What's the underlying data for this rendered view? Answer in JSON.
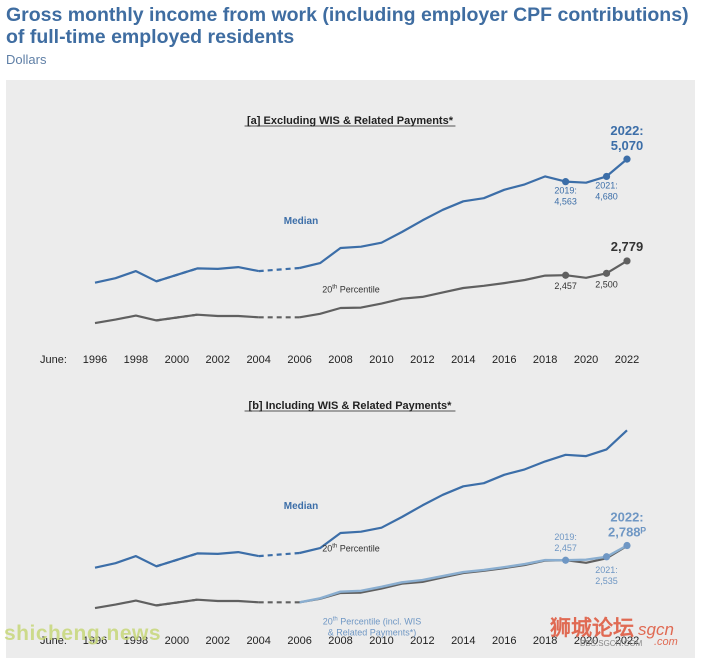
{
  "title": "Gross monthly income from work (including employer CPF contributions) of full-time employed residents",
  "units": "Dollars",
  "watermark": "shicheng.news",
  "forum_logo": {
    "brand": "狮城论坛",
    "domain": "sgcn",
    "com": ".com",
    "url": "BBS.SGCN.COM"
  },
  "colors": {
    "median": "#3c6ea8",
    "p20": "#606060",
    "p20_incl": "#8aaed0",
    "title": "#3f6da1",
    "panel": "#ececec"
  },
  "chart_data": [
    {
      "type": "line",
      "title": "[a] Excluding WIS & Related Payments*",
      "x_prefix": "June:",
      "x_ticks": [
        1996,
        1998,
        2000,
        2002,
        2004,
        2006,
        2008,
        2010,
        2012,
        2014,
        2016,
        2018,
        2020,
        2022
      ],
      "x_range": [
        1996,
        2022
      ],
      "y_range": [
        1000,
        5500
      ],
      "grid": false,
      "dashed_between": [
        2004,
        2006
      ],
      "series": [
        {
          "name": "Median",
          "color": "#3c6ea8",
          "x": [
            1996,
            1997,
            1998,
            1999,
            2001,
            2002,
            2003,
            2004,
            2006,
            2007,
            2008,
            2009,
            2010,
            2011,
            2012,
            2013,
            2014,
            2015,
            2016,
            2017,
            2018,
            2019,
            2020,
            2021,
            2022
          ],
          "y": [
            2290,
            2390,
            2550,
            2320,
            2610,
            2600,
            2640,
            2550,
            2620,
            2730,
            3070,
            3100,
            3190,
            3430,
            3690,
            3930,
            4120,
            4190,
            4380,
            4500,
            4680,
            4563,
            4540,
            4680,
            5070
          ]
        },
        {
          "name": "20th Percentile",
          "color": "#606060",
          "x": [
            1996,
            1997,
            1998,
            1999,
            2001,
            2002,
            2003,
            2004,
            2006,
            2007,
            2008,
            2009,
            2010,
            2011,
            2012,
            2013,
            2014,
            2015,
            2016,
            2017,
            2018,
            2019,
            2020,
            2021,
            2022
          ],
          "y": [
            1380,
            1460,
            1550,
            1440,
            1570,
            1540,
            1540,
            1510,
            1510,
            1590,
            1720,
            1730,
            1820,
            1930,
            1970,
            2070,
            2170,
            2220,
            2280,
            2350,
            2450,
            2457,
            2400,
            2500,
            2779
          ]
        }
      ],
      "point_labels": [
        {
          "x": 2019,
          "series": "Median",
          "lines": [
            "2019:",
            "4,563"
          ]
        },
        {
          "x": 2021,
          "series": "Median",
          "lines": [
            "2021:",
            "4,680"
          ]
        },
        {
          "x": 2022,
          "series": "Median",
          "lines": [
            "2022:",
            "5,070"
          ]
        },
        {
          "x": 2019,
          "series": "20th Percentile",
          "lines": [
            "2,457"
          ]
        },
        {
          "x": 2021,
          "series": "20th Percentile",
          "lines": [
            "2,500"
          ]
        },
        {
          "x": 2022,
          "series": "20th Percentile",
          "lines": [
            "2,779"
          ]
        }
      ]
    },
    {
      "type": "line",
      "title": "[b] Including WIS & Related Payments*",
      "x_prefix": "June:",
      "x_ticks": [
        1996,
        1998,
        2000,
        2002,
        2004,
        2006,
        2008,
        2010,
        2012,
        2014,
        2016,
        2018,
        2020,
        2022
      ],
      "x_range": [
        1996,
        2022
      ],
      "y_range": [
        1000,
        5500
      ],
      "grid": false,
      "dashed_between": [
        2004,
        2006
      ],
      "series": [
        {
          "name": "Median",
          "color": "#3c6ea8",
          "x": [
            1996,
            1997,
            1998,
            1999,
            2001,
            2002,
            2003,
            2004,
            2006,
            2007,
            2008,
            2009,
            2010,
            2011,
            2012,
            2013,
            2014,
            2015,
            2016,
            2017,
            2018,
            2019,
            2020,
            2021,
            2022
          ],
          "y": [
            2290,
            2390,
            2550,
            2320,
            2610,
            2600,
            2640,
            2550,
            2620,
            2730,
            3070,
            3100,
            3190,
            3430,
            3690,
            3930,
            4120,
            4190,
            4380,
            4500,
            4680,
            4830,
            4800,
            4950,
            5380
          ]
        },
        {
          "name": "20th Percentile",
          "color": "#606060",
          "x": [
            1996,
            1997,
            1998,
            1999,
            2001,
            2002,
            2003,
            2004,
            2006,
            2007,
            2008,
            2009,
            2010,
            2011,
            2012,
            2013,
            2014,
            2015,
            2016,
            2017,
            2018,
            2019,
            2020,
            2021,
            2022
          ],
          "y": [
            1380,
            1460,
            1550,
            1440,
            1570,
            1540,
            1540,
            1510,
            1510,
            1590,
            1720,
            1730,
            1820,
            1930,
            1970,
            2070,
            2170,
            2220,
            2280,
            2350,
            2450,
            2457,
            2400,
            2500,
            2779
          ]
        },
        {
          "name": "20th Percentile (incl. WIS & Related Payments*)",
          "color": "#8aaed0",
          "x": [
            2006,
            2007,
            2008,
            2009,
            2010,
            2011,
            2012,
            2013,
            2014,
            2015,
            2016,
            2017,
            2018,
            2019,
            2020,
            2021,
            2022
          ],
          "y": [
            1510,
            1600,
            1750,
            1770,
            1860,
            1960,
            2010,
            2100,
            2190,
            2240,
            2300,
            2370,
            2460,
            2457,
            2470,
            2535,
            2788
          ]
        }
      ],
      "point_labels": [
        {
          "x": 2019,
          "series": "20th Percentile (incl. WIS & Related Payments*)",
          "lines": [
            "2019:",
            "2,457"
          ]
        },
        {
          "x": 2021,
          "series": "20th Percentile (incl. WIS & Related Payments*)",
          "lines": [
            "2021:",
            "2,535"
          ]
        },
        {
          "x": 2022,
          "series": "20th Percentile (incl. WIS & Related Payments*)",
          "lines": [
            "2022:",
            "2,788ᴾ"
          ]
        }
      ]
    }
  ]
}
